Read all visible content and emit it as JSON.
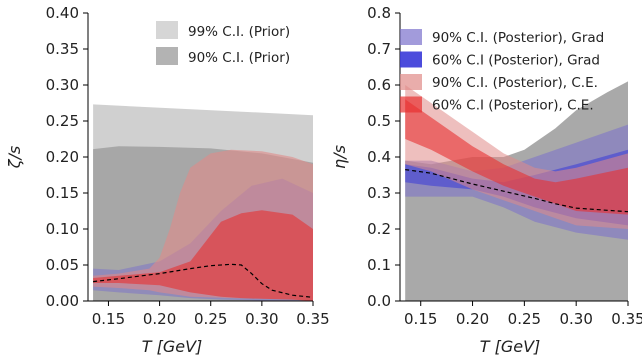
{
  "chart_data": [
    {
      "type": "area",
      "xlabel": "T [GeV]",
      "ylabel": "ζ/s",
      "xlim": [
        0.13,
        0.35
      ],
      "ylim": [
        0,
        0.4
      ],
      "xticks": [
        "0.15",
        "0.20",
        "0.25",
        "0.30",
        "0.35"
      ],
      "yticks": [
        "0.00",
        "0.05",
        "0.10",
        "0.15",
        "0.20",
        "0.25",
        "0.30",
        "0.35",
        "0.40"
      ],
      "legend_position": "top-right",
      "legend": [
        "99% C.I. (Prior)",
        "90% C.I. (Prior)"
      ],
      "series": [
        {
          "name": "99% C.I. (Prior)",
          "color": "#c8c8c8",
          "x": [
            0.135,
            0.35
          ],
          "lower": [
            0,
            0
          ],
          "upper": [
            0.273,
            0.258
          ]
        },
        {
          "name": "90% C.I. (Prior)",
          "color": "#a0a0a0",
          "x": [
            0.135,
            0.16,
            0.2,
            0.25,
            0.3,
            0.35
          ],
          "lower": [
            0,
            0,
            0,
            0,
            0,
            0
          ],
          "upper": [
            0.211,
            0.215,
            0.214,
            0.212,
            0.205,
            0.192
          ]
        },
        {
          "name": "90% C.I. (Posterior), Grad",
          "color": "#7a70cc",
          "x": [
            0.135,
            0.16,
            0.2,
            0.23,
            0.26,
            0.29,
            0.32,
            0.35
          ],
          "lower": [
            0.015,
            0.012,
            0.008,
            0.004,
            0.002,
            0.001,
            0.0,
            0.0
          ],
          "upper": [
            0.045,
            0.043,
            0.055,
            0.08,
            0.125,
            0.16,
            0.17,
            0.15
          ]
        },
        {
          "name": "90% C.I. (Posterior), C.E.",
          "color": "#e08a88",
          "x": [
            0.135,
            0.16,
            0.19,
            0.2,
            0.21,
            0.22,
            0.23,
            0.25,
            0.27,
            0.3,
            0.33,
            0.35
          ],
          "lower": [
            0.02,
            0.018,
            0.015,
            0.012,
            0.01,
            0.008,
            0.006,
            0.005,
            0.004,
            0.003,
            0.002,
            0.0
          ],
          "upper": [
            0.035,
            0.038,
            0.045,
            0.06,
            0.1,
            0.15,
            0.185,
            0.205,
            0.21,
            0.208,
            0.2,
            0.19
          ]
        },
        {
          "name": "60% C.I. (Posterior), C.E.",
          "color": "#e83030",
          "x": [
            0.135,
            0.16,
            0.2,
            0.23,
            0.26,
            0.28,
            0.3,
            0.33,
            0.35
          ],
          "lower": [
            0.025,
            0.025,
            0.022,
            0.012,
            0.006,
            0.004,
            0.003,
            0.002,
            0.0
          ],
          "upper": [
            0.032,
            0.035,
            0.04,
            0.055,
            0.11,
            0.122,
            0.126,
            0.12,
            0.1
          ]
        },
        {
          "name": "mean",
          "color": "#000000",
          "style": "dashed",
          "x": [
            0.135,
            0.16,
            0.2,
            0.23,
            0.25,
            0.27,
            0.28,
            0.29,
            0.3,
            0.31,
            0.33,
            0.35
          ],
          "y": [
            0.027,
            0.031,
            0.038,
            0.045,
            0.049,
            0.051,
            0.05,
            0.038,
            0.024,
            0.015,
            0.008,
            0.005
          ]
        }
      ]
    },
    {
      "type": "area",
      "xlabel": "T [GeV]",
      "ylabel": "η/s",
      "xlim": [
        0.13,
        0.35
      ],
      "ylim": [
        0,
        0.8
      ],
      "xticks": [
        "0.15",
        "0.20",
        "0.25",
        "0.30",
        "0.35"
      ],
      "yticks": [
        "0.0",
        "0.1",
        "0.2",
        "0.3",
        "0.4",
        "0.5",
        "0.6",
        "0.7",
        "0.8"
      ],
      "legend_position": "top",
      "legend": [
        "90% C.I. (Posterior), Grad",
        "60% C.I (Posterior), Grad",
        "90% C.I. (Posterior), C.E.",
        "60% C.I (Posterior), C.E."
      ],
      "series": [
        {
          "name": "prior",
          "color": "#a0a0a0",
          "x": [
            0.135,
            0.16,
            0.2,
            0.23,
            0.25,
            0.28,
            0.3,
            0.33,
            0.35
          ],
          "lower": [
            0,
            0,
            0,
            0,
            0,
            0,
            0,
            0,
            0
          ],
          "upper": [
            0.39,
            0.38,
            0.4,
            0.4,
            0.42,
            0.48,
            0.53,
            0.58,
            0.61
          ]
        },
        {
          "name": "90% C.I. (Posterior), Grad",
          "color": "#7a70cc",
          "x": [
            0.135,
            0.16,
            0.2,
            0.23,
            0.26,
            0.3,
            0.35
          ],
          "lower": [
            0.29,
            0.29,
            0.29,
            0.26,
            0.22,
            0.19,
            0.17
          ],
          "upper": [
            0.39,
            0.39,
            0.36,
            0.37,
            0.4,
            0.44,
            0.49
          ]
        },
        {
          "name": "60% C.I (Posterior), Grad",
          "color": "#3838d8",
          "x": [
            0.135,
            0.16,
            0.2,
            0.23,
            0.26,
            0.3,
            0.35
          ],
          "lower": [
            0.33,
            0.32,
            0.31,
            0.29,
            0.26,
            0.23,
            0.21
          ],
          "upper": [
            0.38,
            0.37,
            0.34,
            0.33,
            0.35,
            0.38,
            0.42
          ]
        },
        {
          "name": "90% C.I. (Posterior), C.E.",
          "color": "#e08a88",
          "x": [
            0.135,
            0.16,
            0.2,
            0.23,
            0.26,
            0.28,
            0.3,
            0.35
          ],
          "lower": [
            0.38,
            0.36,
            0.31,
            0.28,
            0.25,
            0.23,
            0.21,
            0.2
          ],
          "upper": [
            0.6,
            0.55,
            0.47,
            0.41,
            0.37,
            0.36,
            0.37,
            0.41
          ]
        },
        {
          "name": "60% C.I (Posterior), C.E.",
          "color": "#e83030",
          "x": [
            0.135,
            0.16,
            0.2,
            0.23,
            0.26,
            0.28,
            0.3,
            0.35
          ],
          "lower": [
            0.45,
            0.42,
            0.36,
            0.32,
            0.29,
            0.27,
            0.25,
            0.24
          ],
          "upper": [
            0.56,
            0.51,
            0.43,
            0.38,
            0.34,
            0.33,
            0.34,
            0.37
          ]
        },
        {
          "name": "mean",
          "color": "#000000",
          "style": "dashed",
          "x": [
            0.135,
            0.16,
            0.2,
            0.23,
            0.26,
            0.28,
            0.3,
            0.33,
            0.35
          ],
          "y": [
            0.365,
            0.355,
            0.325,
            0.305,
            0.285,
            0.27,
            0.258,
            0.252,
            0.248
          ]
        }
      ]
    }
  ]
}
